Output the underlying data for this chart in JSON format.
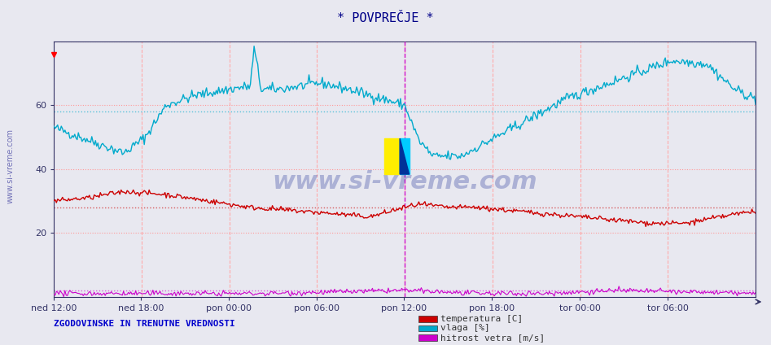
{
  "title": "* POVPREČJE *",
  "background_color": "#e8e8f0",
  "plot_bg_color": "#e8e8f0",
  "ylim": [
    0,
    80
  ],
  "yticks": [
    20,
    40,
    60
  ],
  "x_labels": [
    "ned 12:00",
    "ned 18:00",
    "pon 00:00",
    "pon 06:00",
    "pon 12:00",
    "pon 18:00",
    "tor 00:00",
    "tor 06:00"
  ],
  "n_points": 576,
  "temp_color": "#cc0000",
  "vlaga_color": "#00aacc",
  "wind_color": "#cc00cc",
  "hline_temp_avg": 28,
  "hline_vlaga_avg": 58,
  "hline_wind_avg": 2,
  "legend_text": [
    "temperatura [C]",
    "vlaga [%]",
    "hitrost vetra [m/s]"
  ],
  "footer_text": "ZGODOVINSKE IN TRENUTNE VREDNOSTI",
  "watermark": "www.si-vreme.com",
  "title_color": "#000088",
  "footer_color": "#0000cc",
  "grid_h_color": "#ff9999",
  "grid_v_color": "#ffaaaa"
}
